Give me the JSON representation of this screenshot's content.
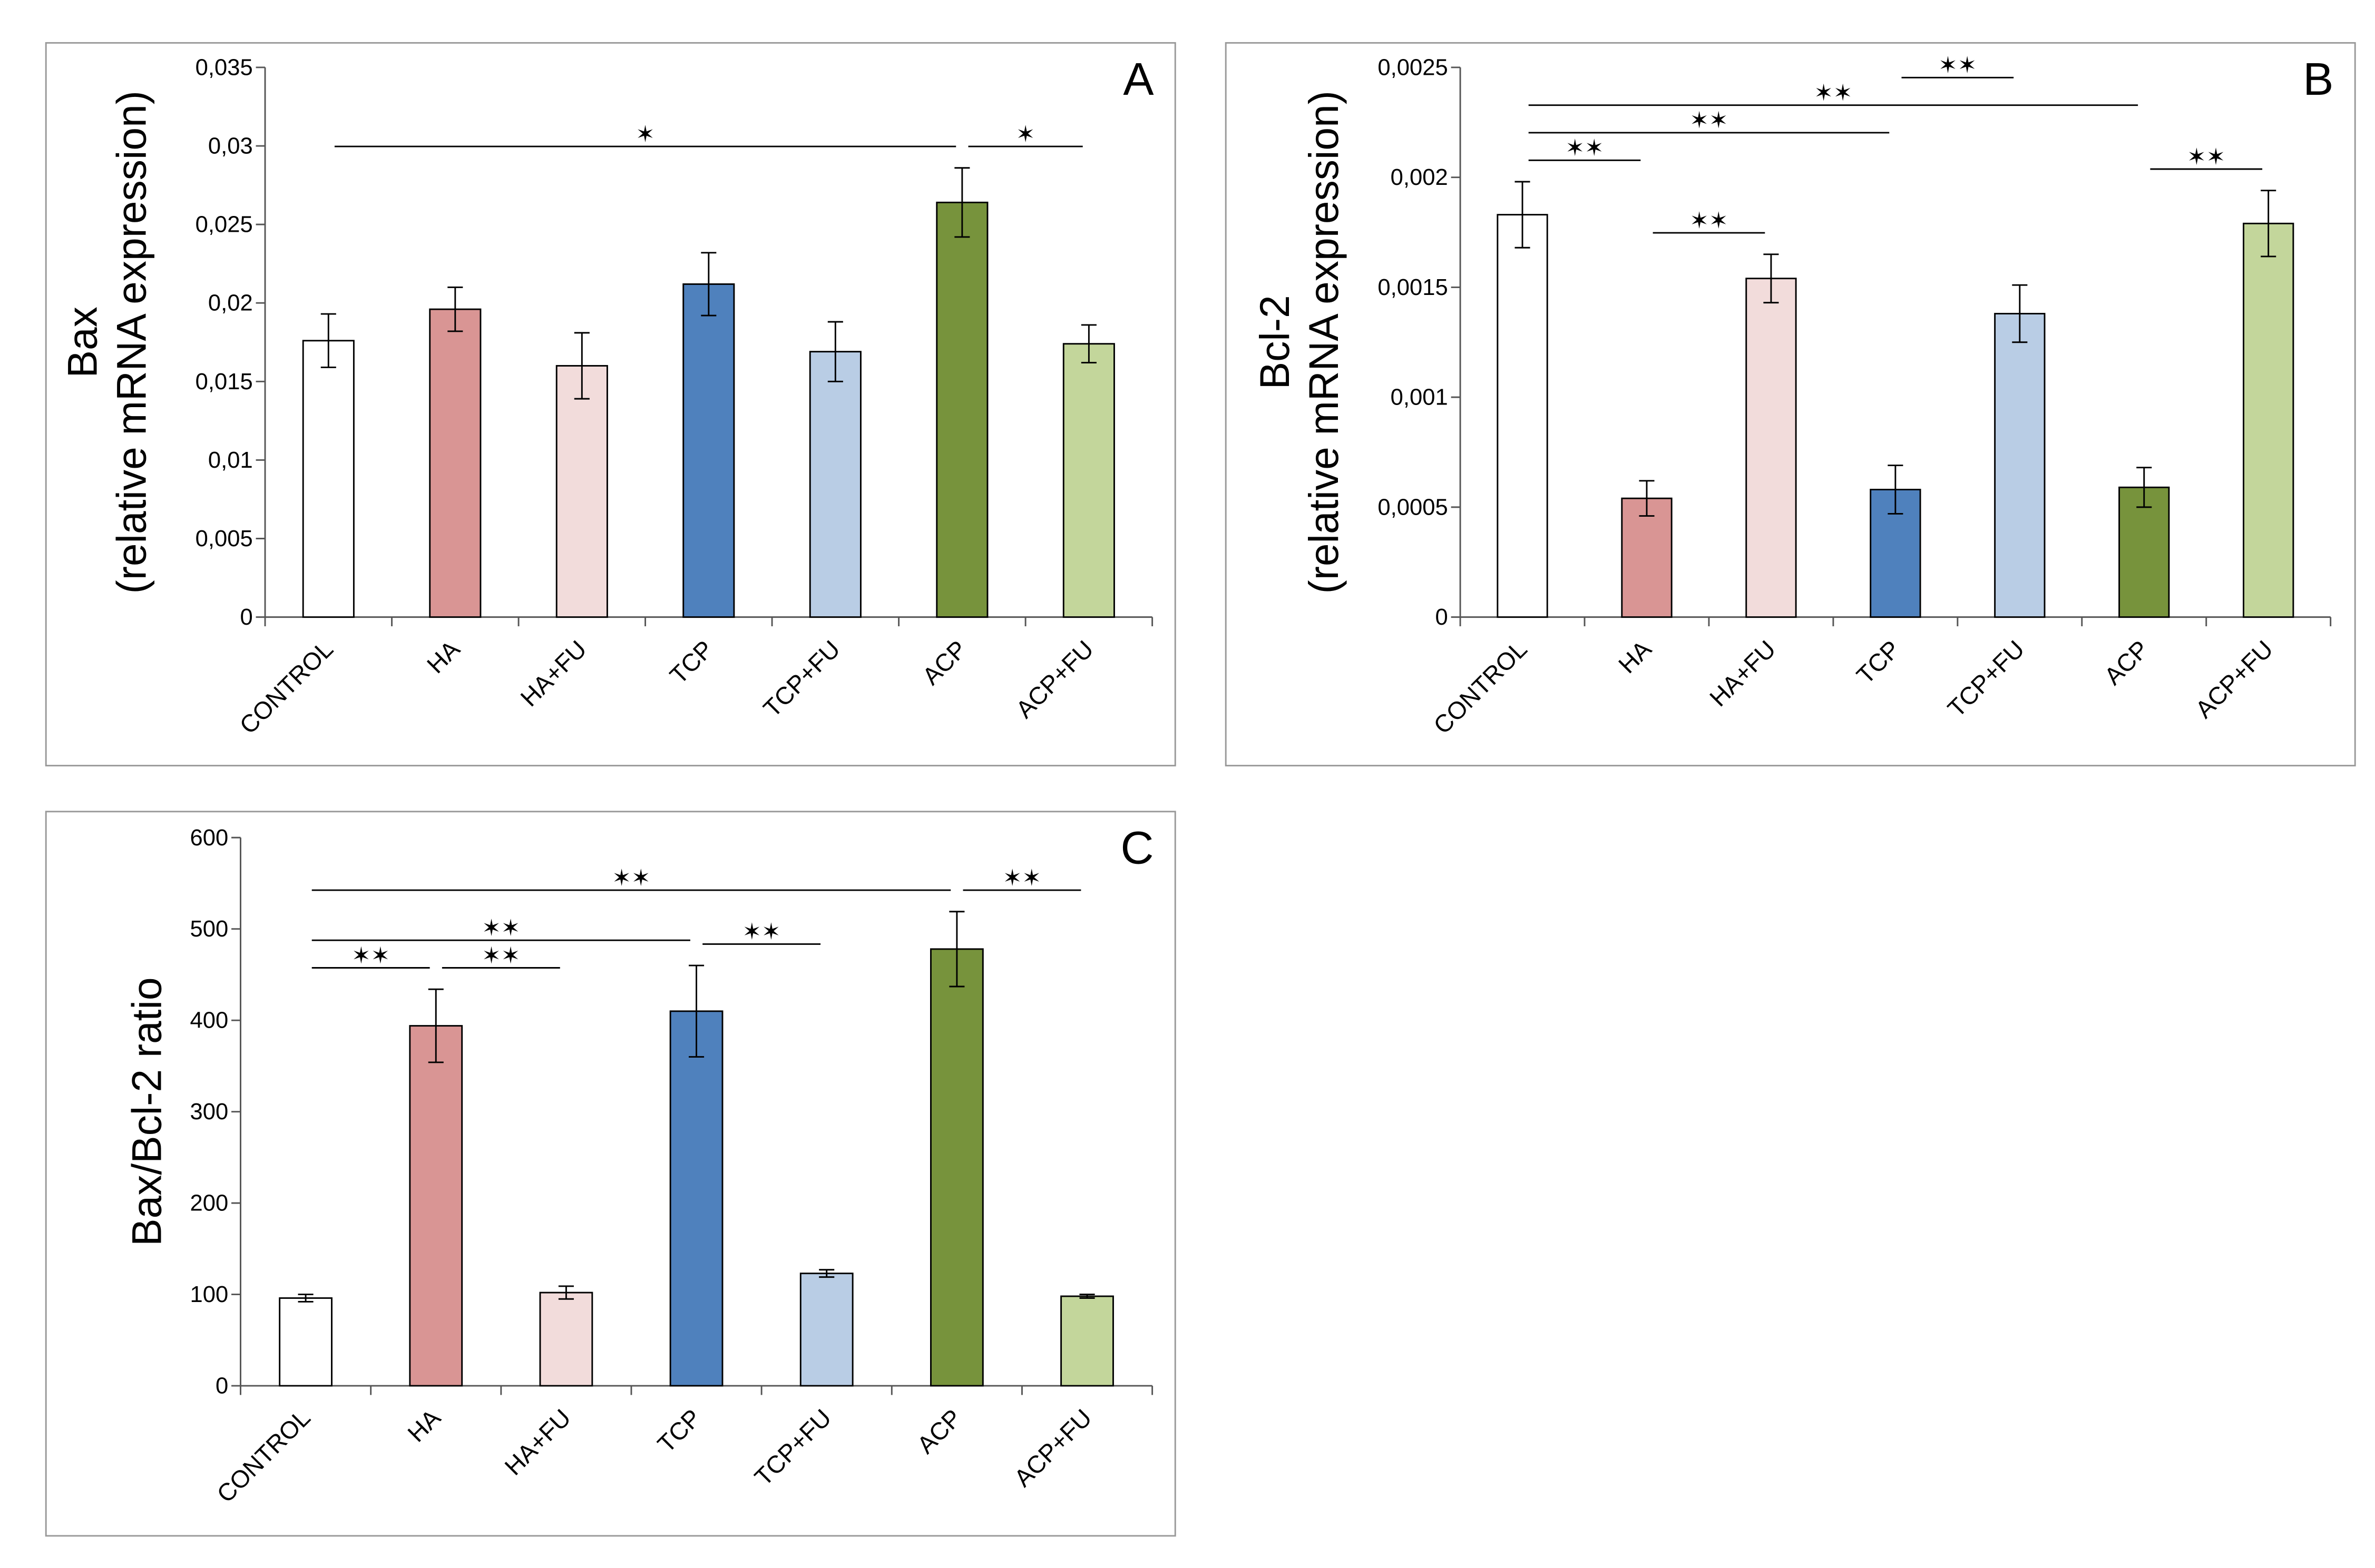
{
  "chart_data": [
    {
      "type": "bar",
      "panel": "A",
      "ylabel": [
        "Bax",
        "(relative mRNA expression)"
      ],
      "categories": [
        "CONTROL",
        "HA",
        "HA+FU",
        "TCP",
        "TCP+FU",
        "ACP",
        "ACP+FU"
      ],
      "values": [
        0.0176,
        0.0196,
        0.016,
        0.0212,
        0.0169,
        0.0264,
        0.0174
      ],
      "errors": [
        0.0017,
        0.0014,
        0.0021,
        0.002,
        0.0019,
        0.0022,
        0.0012
      ],
      "colors": [
        "#ffffff",
        "#d99594",
        "#f2dcdb",
        "#4f81bd",
        "#b9cde5",
        "#77933c",
        "#c3d69b"
      ],
      "ylim": [
        0,
        0.035
      ],
      "yticks": [
        0,
        {
          "value": 0.005,
          "label": "0,005"
        },
        {
          "value": 0.01,
          "label": "0,01"
        },
        {
          "value": 0.015,
          "label": "0,015"
        },
        {
          "value": 0.02,
          "label": "0,02"
        },
        {
          "value": 0.025,
          "label": "0,025"
        },
        {
          "value": 0.03,
          "label": "0,03"
        },
        {
          "value": 0.035,
          "label": "0,035"
        }
      ],
      "annotations": [
        {
          "text": "✶",
          "from": "CONTROL",
          "to": "ACP"
        },
        {
          "text": "✶",
          "from": "ACP",
          "to": "ACP+FU"
        }
      ]
    },
    {
      "type": "bar",
      "panel": "B",
      "ylabel": [
        "Bcl-2",
        "(relative mRNA expression)"
      ],
      "categories": [
        "CONTROL",
        "HA",
        "HA+FU",
        "TCP",
        "TCP+FU",
        "ACP",
        "ACP+FU"
      ],
      "values": [
        0.00183,
        0.00054,
        0.00154,
        0.00058,
        0.00138,
        0.00059,
        0.00179
      ],
      "errors": [
        0.00015,
        8e-05,
        0.00011,
        0.00011,
        0.00013,
        9e-05,
        0.00015
      ],
      "colors": [
        "#ffffff",
        "#d99594",
        "#f2dcdb",
        "#4f81bd",
        "#b9cde5",
        "#77933c",
        "#c3d69b"
      ],
      "ylim": [
        0,
        0.0025
      ],
      "yticks": [
        0,
        {
          "value": 0.0005,
          "label": "0,0005"
        },
        {
          "value": 0.001,
          "label": "0,001"
        },
        {
          "value": 0.0015,
          "label": "0,0015"
        },
        {
          "value": 0.002,
          "label": "0,002"
        },
        {
          "value": 0.0025,
          "label": "0,0025"
        }
      ],
      "annotations": [
        {
          "text": "✶✶",
          "from": "CONTROL",
          "to": "HA"
        },
        {
          "text": "✶✶",
          "from": "HA",
          "to": "HA+FU"
        },
        {
          "text": "✶✶",
          "from": "CONTROL",
          "to": "TCP"
        },
        {
          "text": "✶✶",
          "from": "CONTROL",
          "to": "ACP"
        },
        {
          "text": "✶✶",
          "from": "TCP",
          "to": "TCP+FU"
        },
        {
          "text": "✶✶",
          "from": "ACP",
          "to": "ACP+FU"
        }
      ]
    },
    {
      "type": "bar",
      "panel": "C",
      "ylabel": [
        "Bax/Bcl-2 ratio"
      ],
      "categories": [
        "CONTROL",
        "HA",
        "HA+FU",
        "TCP",
        "TCP+FU",
        "ACP",
        "ACP+FU"
      ],
      "values": [
        96,
        394,
        102,
        410,
        123,
        478,
        98
      ],
      "errors": [
        4,
        40,
        7,
        50,
        4,
        41,
        2
      ],
      "colors": [
        "#ffffff",
        "#d99594",
        "#f2dcdb",
        "#4f81bd",
        "#b9cde5",
        "#77933c",
        "#c3d69b"
      ],
      "ylim": [
        0,
        600
      ],
      "yticks": [
        0,
        100,
        200,
        300,
        400,
        500,
        600
      ],
      "annotations": [
        {
          "text": "✶✶",
          "from": "CONTROL",
          "to": "HA"
        },
        {
          "text": "✶✶",
          "from": "HA",
          "to": "HA+FU"
        },
        {
          "text": "✶✶",
          "from": "TCP",
          "to": "TCP+FU"
        },
        {
          "text": "✶✶",
          "from": "CONTROL",
          "to": "TCP"
        },
        {
          "text": "✶✶",
          "from": "CONTROL",
          "to": "ACP"
        },
        {
          "text": "✶✶",
          "from": "ACP",
          "to": "ACP+FU"
        }
      ]
    }
  ]
}
